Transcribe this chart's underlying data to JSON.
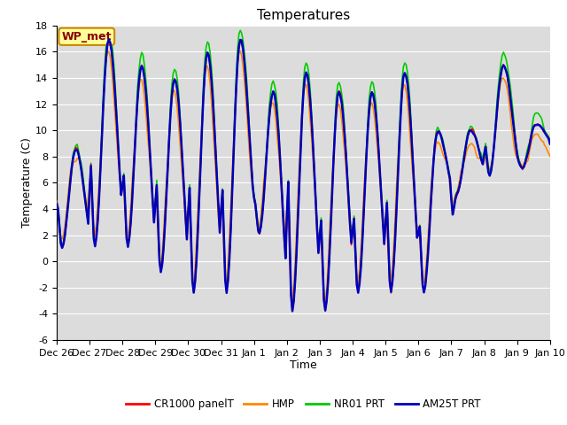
{
  "title": "Temperatures",
  "xlabel": "Time",
  "ylabel": "Temperature (C)",
  "ylim": [
    -6,
    18
  ],
  "yticks": [
    -6,
    -4,
    -2,
    0,
    2,
    4,
    6,
    8,
    10,
    12,
    14,
    16,
    18
  ],
  "x_tick_labels": [
    "Dec 26",
    "Dec 27",
    "Dec 28",
    "Dec 29",
    "Dec 30",
    "Dec 31",
    "Jan 1",
    "Jan 2",
    "Jan 3",
    "Jan 4",
    "Jan 5",
    "Jan 6",
    "Jan 7",
    "Jan 8",
    "Jan 9",
    "Jan 10"
  ],
  "bg_color": "#dcdcdc",
  "fig_bg": "#ffffff",
  "line_colors": {
    "CR1000 panelT": "#ff0000",
    "HMP": "#ff8800",
    "NR01 PRT": "#00cc00",
    "AM25T PRT": "#0000bb"
  },
  "line_widths": {
    "CR1000 panelT": 1.2,
    "HMP": 1.2,
    "NR01 PRT": 1.2,
    "AM25T PRT": 1.8
  },
  "wp_met_label": "WP_met",
  "wp_met_bg": "#ffff99",
  "wp_met_border": "#cc8800",
  "wp_met_text_color": "#880000",
  "title_fontsize": 11,
  "label_fontsize": 9,
  "tick_fontsize": 8
}
